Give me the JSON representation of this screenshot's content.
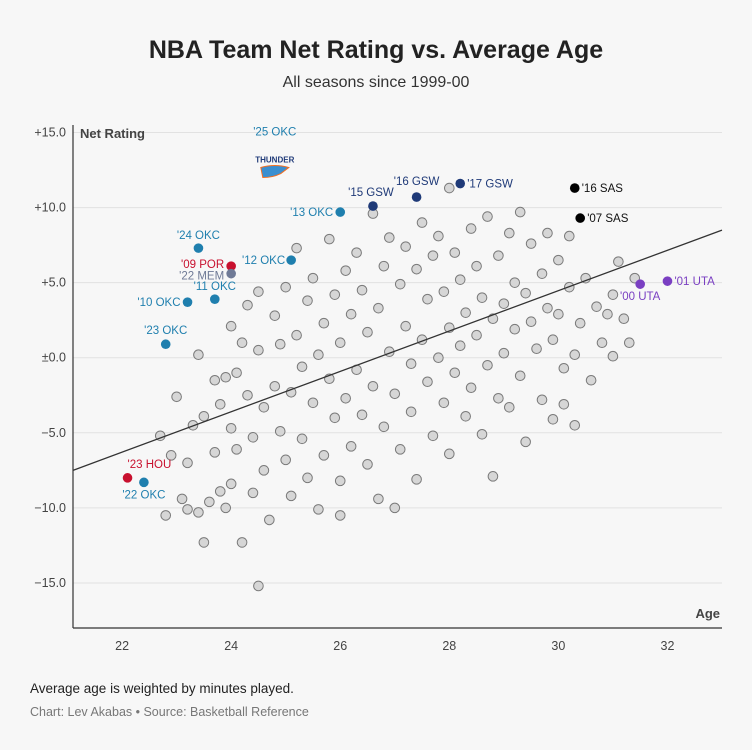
{
  "title": "NBA Team Net Rating vs. Average Age",
  "subtitle": "All seasons since 1999-00",
  "note": "Average age is weighted by minutes played.",
  "credit": "Chart: Lev Akabas • Source: Basketball Reference",
  "chart_data": {
    "type": "scatter",
    "title": "NBA Team Net Rating vs. Average Age",
    "xlabel": "Age",
    "ylabel": "Net Rating",
    "xlim": [
      21.1,
      33.0
    ],
    "ylim": [
      -18,
      15.5
    ],
    "xticks": [
      22,
      24,
      26,
      28,
      30,
      32
    ],
    "xtick_labels": [
      "22",
      "24",
      "26",
      "28",
      "30",
      "32"
    ],
    "yticks": [
      15,
      10,
      5,
      0,
      -5,
      -10,
      -15
    ],
    "ytick_labels": [
      "+15.0",
      "+10.0",
      "+5.0",
      "±0.0",
      "−5.0",
      "−10.0",
      "−15.0"
    ],
    "grid": "horizontal",
    "trendline": {
      "x": [
        21.1,
        33.0
      ],
      "y": [
        -7.5,
        8.5
      ]
    },
    "colors": {
      "gray_fill": "#d6d6d6",
      "gray_stroke": "#7a7a7a",
      "OKC": "#1f7fae",
      "GSW": "#1f3a78",
      "SAS": "#000000",
      "POR": "#c8102e",
      "MEM": "#6f7a96",
      "UTA": "#7a3fc2",
      "HOU": "#c8102e"
    },
    "highlighted": [
      {
        "label": "'25 OKC",
        "x": 24.8,
        "y": 12.8,
        "team": "OKC",
        "logo": "THUNDER",
        "lx": 0,
        "ly": -30,
        "anchor": "middle"
      },
      {
        "label": "'17 GSW",
        "x": 28.2,
        "y": 11.6,
        "team": "GSW",
        "lx": 7,
        "ly": 4,
        "anchor": "start"
      },
      {
        "label": "'16 GSW",
        "x": 27.4,
        "y": 10.7,
        "team": "GSW",
        "lx": 0,
        "ly": -12,
        "anchor": "middle"
      },
      {
        "label": "'15 GSW",
        "x": 26.6,
        "y": 10.1,
        "team": "GSW",
        "lx": -2,
        "ly": -10,
        "anchor": "middle"
      },
      {
        "label": "'13 OKC",
        "x": 26.0,
        "y": 9.7,
        "team": "OKC",
        "lx": -7,
        "ly": 4,
        "anchor": "end"
      },
      {
        "label": "'16 SAS",
        "x": 30.3,
        "y": 11.3,
        "team": "SAS",
        "lx": 7,
        "ly": 4,
        "anchor": "start"
      },
      {
        "label": "'07 SAS",
        "x": 30.4,
        "y": 9.3,
        "team": "SAS",
        "lx": 7,
        "ly": 4,
        "anchor": "start"
      },
      {
        "label": "'24 OKC",
        "x": 23.4,
        "y": 7.3,
        "team": "OKC",
        "lx": 0,
        "ly": -9,
        "anchor": "middle"
      },
      {
        "label": "'12 OKC",
        "x": 25.1,
        "y": 6.5,
        "team": "OKC",
        "lx": -6,
        "ly": 4,
        "anchor": "end"
      },
      {
        "label": "'09 POR",
        "x": 24.0,
        "y": 6.1,
        "team": "POR",
        "lx": -7,
        "ly": 2,
        "anchor": "end"
      },
      {
        "label": "'22 MEM",
        "x": 24.0,
        "y": 5.6,
        "team": "MEM",
        "lx": -7,
        "ly": 6,
        "anchor": "end"
      },
      {
        "label": "'11 OKC",
        "x": 23.7,
        "y": 3.9,
        "team": "OKC",
        "lx": 0,
        "ly": -9,
        "anchor": "middle"
      },
      {
        "label": "'10 OKC",
        "x": 23.2,
        "y": 3.7,
        "team": "OKC",
        "lx": -7,
        "ly": 4,
        "anchor": "end"
      },
      {
        "label": "'23 OKC",
        "x": 22.8,
        "y": 0.9,
        "team": "OKC",
        "lx": 0,
        "ly": -10,
        "anchor": "middle"
      },
      {
        "label": "'00 UTA",
        "x": 31.5,
        "y": 4.9,
        "team": "UTA",
        "lx": 0,
        "ly": 16,
        "anchor": "middle"
      },
      {
        "label": "'01 UTA",
        "x": 32.0,
        "y": 5.1,
        "team": "UTA",
        "lx": 7,
        "ly": 4,
        "anchor": "start"
      },
      {
        "label": "'23 HOU",
        "x": 22.1,
        "y": -8.0,
        "team": "HOU",
        "lx": 0,
        "ly": -10,
        "anchor": "start"
      },
      {
        "label": "'22 OKC",
        "x": 22.4,
        "y": -8.3,
        "team": "OKC",
        "lx": 0,
        "ly": 16,
        "anchor": "middle"
      }
    ],
    "points": [
      [
        22.7,
        -5.2
      ],
      [
        22.8,
        -10.5
      ],
      [
        22.9,
        -6.5
      ],
      [
        23.0,
        -2.6
      ],
      [
        23.1,
        -9.4
      ],
      [
        23.2,
        -10.1
      ],
      [
        23.2,
        -7.0
      ],
      [
        23.3,
        -4.5
      ],
      [
        23.4,
        0.2
      ],
      [
        23.4,
        -10.3
      ],
      [
        23.5,
        -3.9
      ],
      [
        23.5,
        -12.3
      ],
      [
        23.6,
        -9.6
      ],
      [
        23.7,
        -6.3
      ],
      [
        23.7,
        -1.5
      ],
      [
        23.8,
        -3.1
      ],
      [
        23.8,
        -8.9
      ],
      [
        23.9,
        -10.0
      ],
      [
        23.9,
        -1.3
      ],
      [
        24.0,
        2.1
      ],
      [
        24.0,
        -4.7
      ],
      [
        24.0,
        -8.4
      ],
      [
        24.1,
        -1.0
      ],
      [
        24.1,
        -6.1
      ],
      [
        24.2,
        1.0
      ],
      [
        24.2,
        -12.3
      ],
      [
        24.3,
        3.5
      ],
      [
        24.3,
        -2.5
      ],
      [
        24.4,
        -5.3
      ],
      [
        24.4,
        -9.0
      ],
      [
        24.5,
        4.4
      ],
      [
        24.5,
        0.5
      ],
      [
        24.5,
        -15.2
      ],
      [
        24.6,
        -3.3
      ],
      [
        24.6,
        -7.5
      ],
      [
        24.7,
        -10.8
      ],
      [
        24.8,
        2.8
      ],
      [
        24.8,
        -1.9
      ],
      [
        24.9,
        -4.9
      ],
      [
        24.9,
        0.9
      ],
      [
        25.0,
        4.7
      ],
      [
        25.0,
        -6.8
      ],
      [
        25.1,
        -2.3
      ],
      [
        25.1,
        -9.2
      ],
      [
        25.2,
        7.3
      ],
      [
        25.2,
        1.5
      ],
      [
        25.3,
        -0.6
      ],
      [
        25.3,
        -5.4
      ],
      [
        25.4,
        3.8
      ],
      [
        25.4,
        -8.0
      ],
      [
        25.5,
        5.3
      ],
      [
        25.5,
        -3.0
      ],
      [
        25.6,
        0.2
      ],
      [
        25.6,
        -10.1
      ],
      [
        25.7,
        2.3
      ],
      [
        25.7,
        -6.5
      ],
      [
        25.8,
        7.9
      ],
      [
        25.8,
        -1.4
      ],
      [
        25.9,
        4.2
      ],
      [
        25.9,
        -4.0
      ],
      [
        26.0,
        1.0
      ],
      [
        26.0,
        -8.2
      ],
      [
        26.0,
        -10.5
      ],
      [
        26.1,
        5.8
      ],
      [
        26.1,
        -2.7
      ],
      [
        26.2,
        2.9
      ],
      [
        26.2,
        -5.9
      ],
      [
        26.3,
        7.0
      ],
      [
        26.3,
        -0.8
      ],
      [
        26.4,
        -3.8
      ],
      [
        26.4,
        4.5
      ],
      [
        26.5,
        -7.1
      ],
      [
        26.5,
        1.7
      ],
      [
        26.6,
        9.6
      ],
      [
        26.6,
        -1.9
      ],
      [
        26.7,
        3.3
      ],
      [
        26.7,
        -9.4
      ],
      [
        26.8,
        6.1
      ],
      [
        26.8,
        -4.6
      ],
      [
        26.9,
        0.4
      ],
      [
        26.9,
        8.0
      ],
      [
        27.0,
        -2.4
      ],
      [
        27.0,
        -10.0
      ],
      [
        27.1,
        4.9
      ],
      [
        27.1,
        -6.1
      ],
      [
        27.2,
        2.1
      ],
      [
        27.2,
        7.4
      ],
      [
        27.3,
        -0.4
      ],
      [
        27.3,
        -3.6
      ],
      [
        27.4,
        5.9
      ],
      [
        27.4,
        -8.1
      ],
      [
        27.5,
        1.2
      ],
      [
        27.5,
        9.0
      ],
      [
        27.6,
        -1.6
      ],
      [
        27.6,
        3.9
      ],
      [
        27.7,
        -5.2
      ],
      [
        27.7,
        6.8
      ],
      [
        27.8,
        0.0
      ],
      [
        27.8,
        8.1
      ],
      [
        27.9,
        -3.0
      ],
      [
        27.9,
        4.4
      ],
      [
        28.0,
        2.0
      ],
      [
        28.0,
        -6.4
      ],
      [
        28.1,
        7.0
      ],
      [
        28.1,
        -1.0
      ],
      [
        28.2,
        5.2
      ],
      [
        28.2,
        0.8
      ],
      [
        28.3,
        -3.9
      ],
      [
        28.3,
        3.0
      ],
      [
        28.4,
        8.6
      ],
      [
        28.4,
        -2.0
      ],
      [
        28.5,
        6.1
      ],
      [
        28.5,
        1.5
      ],
      [
        28.6,
        -5.1
      ],
      [
        28.6,
        4.0
      ],
      [
        28.7,
        9.4
      ],
      [
        28.7,
        -0.5
      ],
      [
        28.8,
        2.6
      ],
      [
        28.8,
        -7.9
      ],
      [
        28.9,
        6.8
      ],
      [
        28.9,
        -2.7
      ],
      [
        29.0,
        3.6
      ],
      [
        29.0,
        0.3
      ],
      [
        29.1,
        8.3
      ],
      [
        29.1,
        -3.3
      ],
      [
        29.2,
        5.0
      ],
      [
        29.2,
        1.9
      ],
      [
        29.3,
        9.7
      ],
      [
        29.3,
        -1.2
      ],
      [
        29.4,
        4.3
      ],
      [
        29.4,
        -5.6
      ],
      [
        29.5,
        2.4
      ],
      [
        29.5,
        7.6
      ],
      [
        29.6,
        0.6
      ],
      [
        29.7,
        5.6
      ],
      [
        29.7,
        -2.8
      ],
      [
        29.8,
        3.3
      ],
      [
        29.8,
        8.3
      ],
      [
        29.9,
        1.2
      ],
      [
        29.9,
        -4.1
      ],
      [
        30.0,
        6.5
      ],
      [
        30.0,
        2.9
      ],
      [
        30.1,
        -0.7
      ],
      [
        30.1,
        -3.1
      ],
      [
        30.2,
        4.7
      ],
      [
        30.2,
        8.1
      ],
      [
        30.3,
        0.2
      ],
      [
        30.3,
        -4.5
      ],
      [
        30.4,
        2.3
      ],
      [
        30.5,
        5.3
      ],
      [
        30.6,
        -1.5
      ],
      [
        30.7,
        3.4
      ],
      [
        30.8,
        1.0
      ],
      [
        30.9,
        2.9
      ],
      [
        31.0,
        4.2
      ],
      [
        31.1,
        6.4
      ],
      [
        31.2,
        2.6
      ],
      [
        31.4,
        5.3
      ],
      [
        31.3,
        1.0
      ],
      [
        31.0,
        0.1
      ],
      [
        28.0,
        11.3
      ]
    ]
  }
}
